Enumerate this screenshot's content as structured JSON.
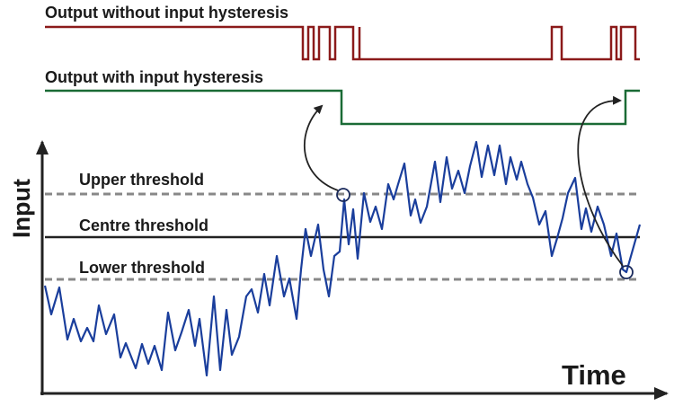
{
  "outputs": {
    "without_hysteresis": "Output without input hysteresis",
    "with_hysteresis": "Output with input hysteresis"
  },
  "thresholds": {
    "upper": "Upper threshold",
    "centre": "Centre threshold",
    "lower": "Lower threshold"
  },
  "axes": {
    "y": "Input",
    "x": "Time"
  }
}
